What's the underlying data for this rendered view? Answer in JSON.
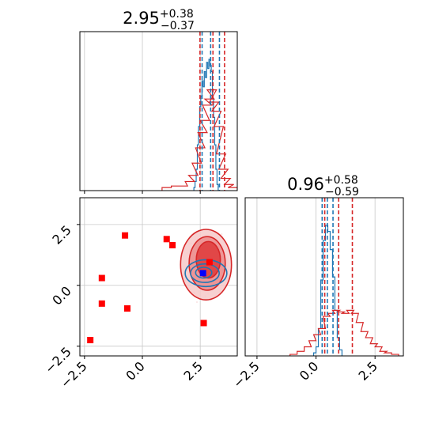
{
  "chart_data": [
    {
      "type": "histogram",
      "panel": "marginal-x",
      "title": {
        "value": "2.95",
        "plus": "+0.38",
        "minus": "−0.37"
      },
      "xlim": [
        -2.7,
        4.1
      ],
      "grid": true,
      "series": [
        {
          "color": "#1f77b4",
          "bins": [
            [
              2.25,
              0.02
            ],
            [
              2.3,
              0.06
            ],
            [
              2.35,
              0.14
            ],
            [
              2.4,
              0.3
            ],
            [
              2.45,
              0.42
            ],
            [
              2.5,
              0.55
            ],
            [
              2.55,
              0.62
            ],
            [
              2.6,
              0.72
            ],
            [
              2.65,
              0.68
            ],
            [
              2.7,
              0.78
            ],
            [
              2.75,
              0.74
            ],
            [
              2.8,
              0.84
            ],
            [
              2.85,
              0.8
            ],
            [
              2.9,
              0.86
            ],
            [
              2.95,
              0.82
            ],
            [
              3.0,
              0.78
            ],
            [
              3.05,
              0.6
            ],
            [
              3.1,
              0.48
            ],
            [
              3.15,
              0.3
            ],
            [
              3.2,
              0.14
            ],
            [
              3.25,
              0.04
            ]
          ],
          "quantiles": [
            2.58,
            2.95,
            3.33
          ]
        },
        {
          "color": "#d62728",
          "bins": [
            [
              1.05,
              0.02
            ],
            [
              1.45,
              0.03
            ],
            [
              1.75,
              0.03
            ],
            [
              2.05,
              0.06
            ],
            [
              2.2,
              0.1
            ],
            [
              2.35,
              0.18
            ],
            [
              2.5,
              0.28
            ],
            [
              2.6,
              0.38
            ],
            [
              2.7,
              0.46
            ],
            [
              2.8,
              0.56
            ],
            [
              2.9,
              0.6
            ],
            [
              3.0,
              0.66
            ],
            [
              3.1,
              0.58
            ],
            [
              3.2,
              0.52
            ],
            [
              3.3,
              0.42
            ],
            [
              3.4,
              0.24
            ],
            [
              3.5,
              0.14
            ],
            [
              3.6,
              0.08
            ],
            [
              3.75,
              0.04
            ],
            [
              3.9,
              0.02
            ]
          ],
          "quantiles": [
            2.49,
            3.05,
            3.55
          ]
        }
      ]
    },
    {
      "type": "histogram",
      "panel": "marginal-y",
      "title": {
        "value": "0.96",
        "plus": "+0.58",
        "minus": "−0.59"
      },
      "xlim": [
        -3.0,
        3.7
      ],
      "grid": true,
      "xticks": [
        "−2.5",
        "0.0",
        "2.5"
      ],
      "series": [
        {
          "color": "#1f77b4",
          "bins": [
            [
              -0.05,
              0.02
            ],
            [
              0.05,
              0.06
            ],
            [
              0.15,
              0.18
            ],
            [
              0.25,
              0.5
            ],
            [
              0.35,
              0.76
            ],
            [
              0.45,
              0.86
            ],
            [
              0.55,
              0.82
            ],
            [
              0.65,
              0.7
            ],
            [
              0.75,
              0.52
            ],
            [
              0.85,
              0.3
            ],
            [
              0.95,
              0.12
            ],
            [
              1.05,
              0.04
            ]
          ],
          "quantiles": [
            0.26,
            0.48,
            0.72
          ]
        },
        {
          "color": "#d62728",
          "bins": [
            [
              -0.95,
              0.01
            ],
            [
              -0.65,
              0.03
            ],
            [
              -0.35,
              0.06
            ],
            [
              -0.15,
              0.1
            ],
            [
              0.05,
              0.14
            ],
            [
              0.25,
              0.18
            ],
            [
              0.45,
              0.26
            ],
            [
              0.65,
              0.28
            ],
            [
              0.85,
              0.3
            ],
            [
              1.05,
              0.29
            ],
            [
              1.25,
              0.28
            ],
            [
              1.45,
              0.3
            ],
            [
              1.65,
              0.28
            ],
            [
              1.85,
              0.22
            ],
            [
              2.05,
              0.16
            ],
            [
              2.25,
              0.12
            ],
            [
              2.45,
              0.08
            ],
            [
              2.65,
              0.06
            ],
            [
              2.85,
              0.03
            ],
            [
              3.05,
              0.02
            ],
            [
              3.35,
              0.01
            ]
          ],
          "quantiles": [
            0.37,
            0.96,
            1.54
          ]
        }
      ]
    },
    {
      "type": "scatter",
      "panel": "joint",
      "xlim": [
        -2.7,
        4.1
      ],
      "ylim": [
        -2.9,
        3.6
      ],
      "grid": true,
      "xticks": [
        "−2.5",
        "0.0",
        "2.5"
      ],
      "yticks": [
        "−2.5",
        "0.0",
        "2.5"
      ],
      "red_contours": [
        {
          "level": "outer",
          "cx": 2.75,
          "cy": 0.85,
          "rx": 1.1,
          "ry": 1.45
        },
        {
          "level": "mid",
          "cx": 2.8,
          "cy": 0.9,
          "rx": 0.78,
          "ry": 1.1
        },
        {
          "level": "inner",
          "cx": 2.85,
          "cy": 1.05,
          "rx": 0.52,
          "ry": 0.75
        }
      ],
      "blue_contours": [
        {
          "level": "outer",
          "cx": 2.75,
          "cy": 0.5,
          "rx": 0.9,
          "ry": 0.55
        },
        {
          "level": "mid",
          "cx": 2.7,
          "cy": 0.5,
          "rx": 0.62,
          "ry": 0.38
        },
        {
          "level": "inner",
          "cx": 2.65,
          "cy": 0.52,
          "rx": 0.35,
          "ry": 0.22
        }
      ],
      "red_markers": [
        [
          -2.25,
          -2.25
        ],
        [
          -1.75,
          0.3
        ],
        [
          -1.75,
          -0.75
        ],
        [
          -0.75,
          2.05
        ],
        [
          -0.65,
          -0.95
        ],
        [
          1.05,
          1.9
        ],
        [
          1.3,
          1.65
        ],
        [
          2.9,
          0.95
        ],
        [
          2.65,
          -1.55
        ]
      ],
      "blue_marker": [
        2.62,
        0.5
      ],
      "colors": {
        "red": "#d62728",
        "red_marker": "#ff0000",
        "blue": "#1f77b4",
        "blue_marker": "#0000ff"
      }
    }
  ]
}
